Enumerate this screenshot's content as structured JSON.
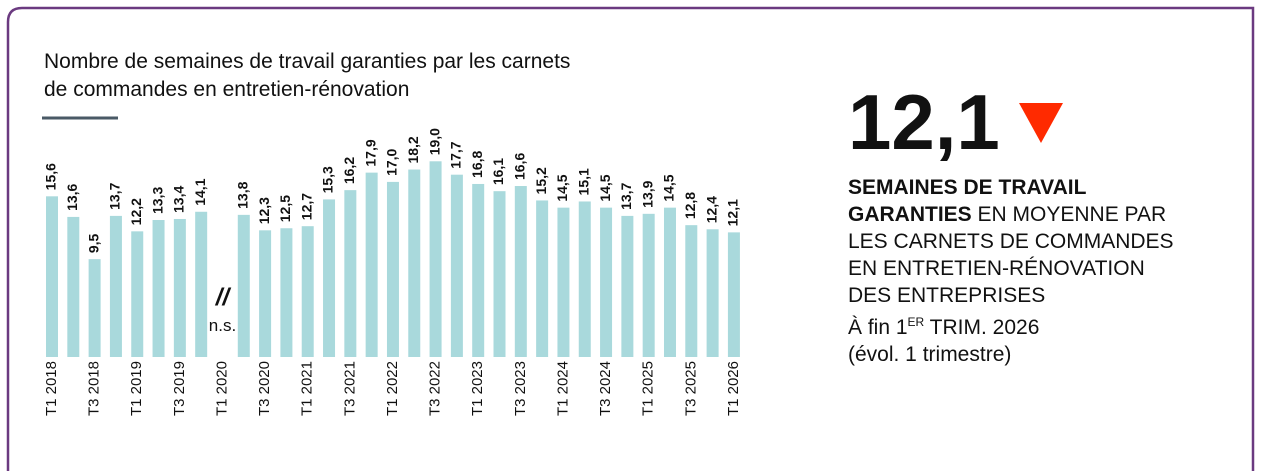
{
  "chart_data": {
    "type": "bar",
    "title_lines": [
      "Nombre de semaines de travail garanties par les carnets",
      "de commandes en entretien-rénovation"
    ],
    "categories": [
      "T1 2018",
      null,
      "T3 2018",
      null,
      "T1 2019",
      null,
      "T3 2019",
      null,
      "T1 2020",
      null,
      "T3 2020",
      null,
      "T1 2021",
      null,
      "T3 2021",
      null,
      "T1 2022",
      null,
      "T3 2022",
      null,
      "T1 2023",
      null,
      "T3 2023",
      null,
      "T1 2024",
      null,
      "T3 2024",
      null,
      "T1 2025",
      null,
      "T3 2025",
      null,
      "T1 2026"
    ],
    "values": [
      15.6,
      13.6,
      9.5,
      13.7,
      12.2,
      13.3,
      13.4,
      14.1,
      null,
      13.8,
      12.3,
      12.5,
      12.7,
      15.3,
      16.2,
      17.9,
      17.0,
      18.2,
      19.0,
      17.7,
      16.8,
      16.1,
      16.6,
      15.2,
      14.5,
      15.1,
      14.5,
      13.7,
      13.9,
      14.5,
      12.8,
      12.4,
      12.1
    ],
    "value_labels": [
      "15,6",
      "13,6",
      "9,5",
      "13,7",
      "12,2",
      "13,3",
      "13,4",
      "14,1",
      null,
      "13,8",
      "12,3",
      "12,5",
      "12,7",
      "15,3",
      "16,2",
      "17,9",
      "17,0",
      "18,2",
      "19,0",
      "17,7",
      "16,8",
      "16,1",
      "16,6",
      "15,2",
      "14,5",
      "15,1",
      "14,5",
      "13,7",
      "13,9",
      "14,5",
      "12,8",
      "12,4",
      "12,1"
    ],
    "gap_annotation": {
      "index": 8,
      "symbol": "//",
      "label": "n.s."
    },
    "color": "#a9d9dc",
    "ylim": [
      0,
      20
    ]
  },
  "kpi": {
    "value": "12,1",
    "trend": "down",
    "line1": "SEMAINES DE TRAVAIL",
    "line2_bold": "GARANTIES",
    "line2_rest": " EN MOYENNE PAR",
    "line3": "LES CARNETS DE COMMANDES",
    "line4": "EN ENTRETIEN-RÉNOVATION",
    "line5": "DES ENTREPRISES",
    "line6_a": "À fin 1",
    "line6_sup": "ER",
    "line6_b": " TRIM. 2026",
    "line7": "(évol. 1 trimestre)"
  }
}
